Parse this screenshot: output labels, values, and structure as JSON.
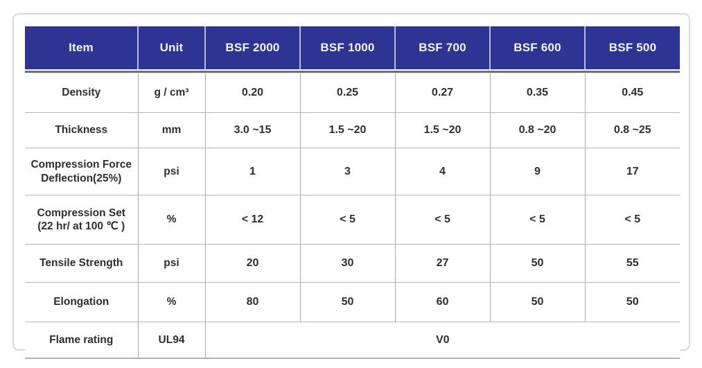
{
  "table": {
    "title": "BSF product specification table",
    "columns": [
      "Item",
      "Unit",
      "BSF 2000",
      "BSF 1000",
      "BSF 700",
      "BSF 600",
      "BSF 500"
    ],
    "rows": [
      {
        "item": "Density",
        "unit": "g / cm³",
        "values": [
          "0.20",
          "0.25",
          "0.27",
          "0.35",
          "0.45"
        ]
      },
      {
        "item": "Thickness",
        "unit": "mm",
        "values": [
          "3.0 ~15",
          "1.5 ~20",
          "1.5 ~20",
          "0.8 ~20",
          "0.8 ~25"
        ]
      },
      {
        "item": "Compression Force\nDeflection(25%)",
        "unit": "psi",
        "values": [
          "1",
          "3",
          "4",
          "9",
          "17"
        ]
      },
      {
        "item": "Compression Set\n(22 hr/ at 100 ℃ )",
        "unit": "%",
        "values": [
          "< 12",
          "< 5",
          "< 5",
          "< 5",
          "< 5"
        ]
      },
      {
        "item": "Tensile Strength",
        "unit": "psi",
        "values": [
          "20",
          "30",
          "27",
          "50",
          "55"
        ]
      },
      {
        "item": "Elongation",
        "unit": "%",
        "values": [
          "80",
          "50",
          "60",
          "50",
          "50"
        ]
      }
    ],
    "merged_row": {
      "item": "Flame rating",
      "unit": "UL94",
      "value": "V0"
    },
    "colors": {
      "header_bg": "#2e3493",
      "header_text": "#f3f4fb",
      "body_text": "#2e2e2e",
      "grid_line": "#b4b4b4",
      "header_underline": "#6f6f6f",
      "card_border": "#d9d9d9"
    }
  }
}
